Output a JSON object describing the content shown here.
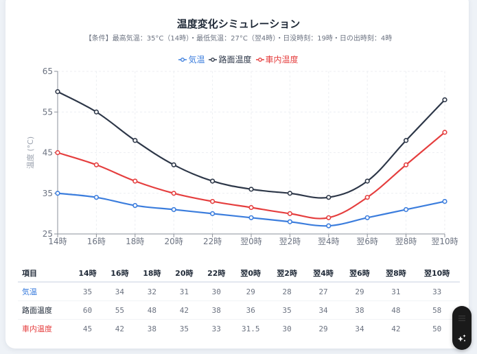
{
  "title": "温度変化シミュレーション",
  "subtitle": "【条件】最高気温：35°C（14時）・最低気温：27°C（翌4時）・日没時刻：19時・日の出時刻：4時",
  "chart_data": {
    "type": "line",
    "title": "温度変化シミュレーション",
    "xlabel": "",
    "ylabel": "温度 (°C)",
    "ylim": [
      25,
      65
    ],
    "yticks": [
      25,
      35,
      45,
      55,
      65
    ],
    "grid": true,
    "legend_position": "top-center",
    "categories": [
      "14時",
      "16時",
      "18時",
      "20時",
      "22時",
      "翌0時",
      "翌2時",
      "翌4時",
      "翌6時",
      "翌8時",
      "翌10時"
    ],
    "series": [
      {
        "name": "気温",
        "color": "#3b7ddd",
        "values": [
          35,
          34,
          32,
          31,
          30,
          29,
          28,
          27,
          29,
          31,
          33
        ]
      },
      {
        "name": "路面温度",
        "color": "#2d3748",
        "values": [
          60,
          55,
          48,
          42,
          38,
          36,
          35,
          34,
          38,
          48,
          58
        ]
      },
      {
        "name": "車内温度",
        "color": "#e53e3e",
        "values": [
          45,
          42,
          38,
          35,
          33,
          31.5,
          30,
          29,
          34,
          42,
          50
        ]
      }
    ]
  },
  "table": {
    "header_label": "項目",
    "columns": [
      "14時",
      "16時",
      "18時",
      "20時",
      "22時",
      "翌0時",
      "翌2時",
      "翌4時",
      "翌6時",
      "翌8時",
      "翌10時"
    ],
    "rows": [
      {
        "label": "気温",
        "color": "#3b7ddd",
        "values": [
          "35",
          "34",
          "32",
          "31",
          "30",
          "29",
          "28",
          "27",
          "29",
          "31",
          "33"
        ]
      },
      {
        "label": "路面温度",
        "color": "#1f2937",
        "values": [
          "60",
          "55",
          "48",
          "42",
          "38",
          "36",
          "35",
          "34",
          "38",
          "48",
          "58"
        ]
      },
      {
        "label": "車内温度",
        "color": "#e53e3e",
        "values": [
          "45",
          "42",
          "38",
          "35",
          "33",
          "31.5",
          "30",
          "29",
          "34",
          "42",
          "50"
        ]
      }
    ]
  },
  "fab": {
    "icons": [
      "list-icon",
      "sparkle-icon"
    ]
  }
}
